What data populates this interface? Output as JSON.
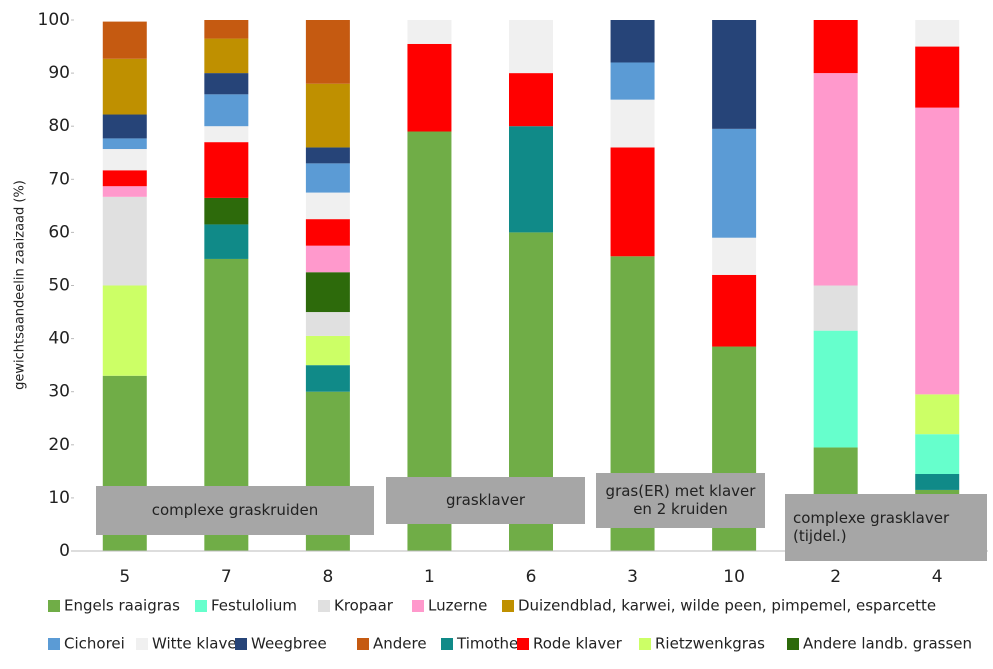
{
  "chart_data": {
    "type": "stacked_bar",
    "y_label": "gewichtsaandeelin zaaizaad (%)",
    "categories": [
      "5",
      "7",
      "8",
      "1",
      "6",
      "3",
      "10",
      "2",
      "4"
    ],
    "ylim": [
      0,
      100
    ],
    "yticks": [
      0,
      10,
      20,
      30,
      40,
      50,
      60,
      70,
      80,
      90,
      100
    ],
    "series": [
      {
        "name": "Engels raaigras",
        "color": "#70ad47",
        "values": [
          33,
          55,
          30,
          79,
          60,
          55.5,
          38.5,
          19.5,
          11.5
        ]
      },
      {
        "name": "Festulolium",
        "color": "#66ffcc",
        "values": [
          0,
          0,
          0,
          0,
          0,
          0,
          0,
          22,
          7.5
        ]
      },
      {
        "name": "Kropaar",
        "color": "#e0e0e0",
        "values": [
          16.7,
          0,
          4.5,
          0,
          0,
          0,
          0,
          8.5,
          0
        ]
      },
      {
        "name": "Luzerne",
        "color": "#ff99cc",
        "values": [
          2,
          0,
          5,
          0,
          0,
          0,
          0,
          40,
          54
        ]
      },
      {
        "name": "Duizendblad, karwei, wilde peen, pimpemel, esparcette",
        "color": "#bf9000",
        "values": [
          10.5,
          6.5,
          12,
          0,
          0,
          0,
          0,
          0,
          0
        ]
      },
      {
        "name": "Cichorei",
        "color": "#5b9bd5",
        "values": [
          2,
          6,
          5.5,
          0,
          0,
          7,
          20.5,
          0,
          0
        ]
      },
      {
        "name": "Witte klaver",
        "color": "#f0f0f0",
        "values": [
          4,
          3,
          5,
          4.5,
          10,
          9,
          7,
          0,
          5
        ]
      },
      {
        "name": "Weegbree",
        "color": "#264478",
        "values": [
          4.5,
          4,
          3,
          0,
          0,
          8,
          20.5,
          0,
          0
        ]
      },
      {
        "name": "Andere",
        "color": "#c55a11",
        "values": [
          7,
          3.5,
          12,
          0,
          0,
          0,
          0,
          0,
          0
        ]
      },
      {
        "name": "Timothee",
        "color": "#108a88",
        "values": [
          0,
          6.5,
          5,
          0,
          20,
          0,
          0,
          0,
          3
        ]
      },
      {
        "name": "Rode klaver",
        "color": "#ff0000",
        "values": [
          3,
          10.5,
          5,
          16.5,
          10,
          20.5,
          13.5,
          10,
          11.5
        ]
      },
      {
        "name": "Rietzwenkgras",
        "color": "#ccff66",
        "values": [
          17,
          0,
          5.5,
          0,
          0,
          0,
          0,
          0,
          7.5
        ]
      },
      {
        "name": "Andere landb. grassen",
        "color": "#2d6a0b",
        "values": [
          0,
          5,
          7.5,
          0,
          0,
          0,
          0,
          0,
          0
        ]
      }
    ],
    "annotations": [
      [
        "complexe graskruiden"
      ],
      [
        "grasklaver"
      ],
      [
        "gras(ER) met klaver",
        "en 2 kruiden"
      ],
      [
        "complexe grasklaver",
        "(tijdel.)"
      ]
    ]
  }
}
